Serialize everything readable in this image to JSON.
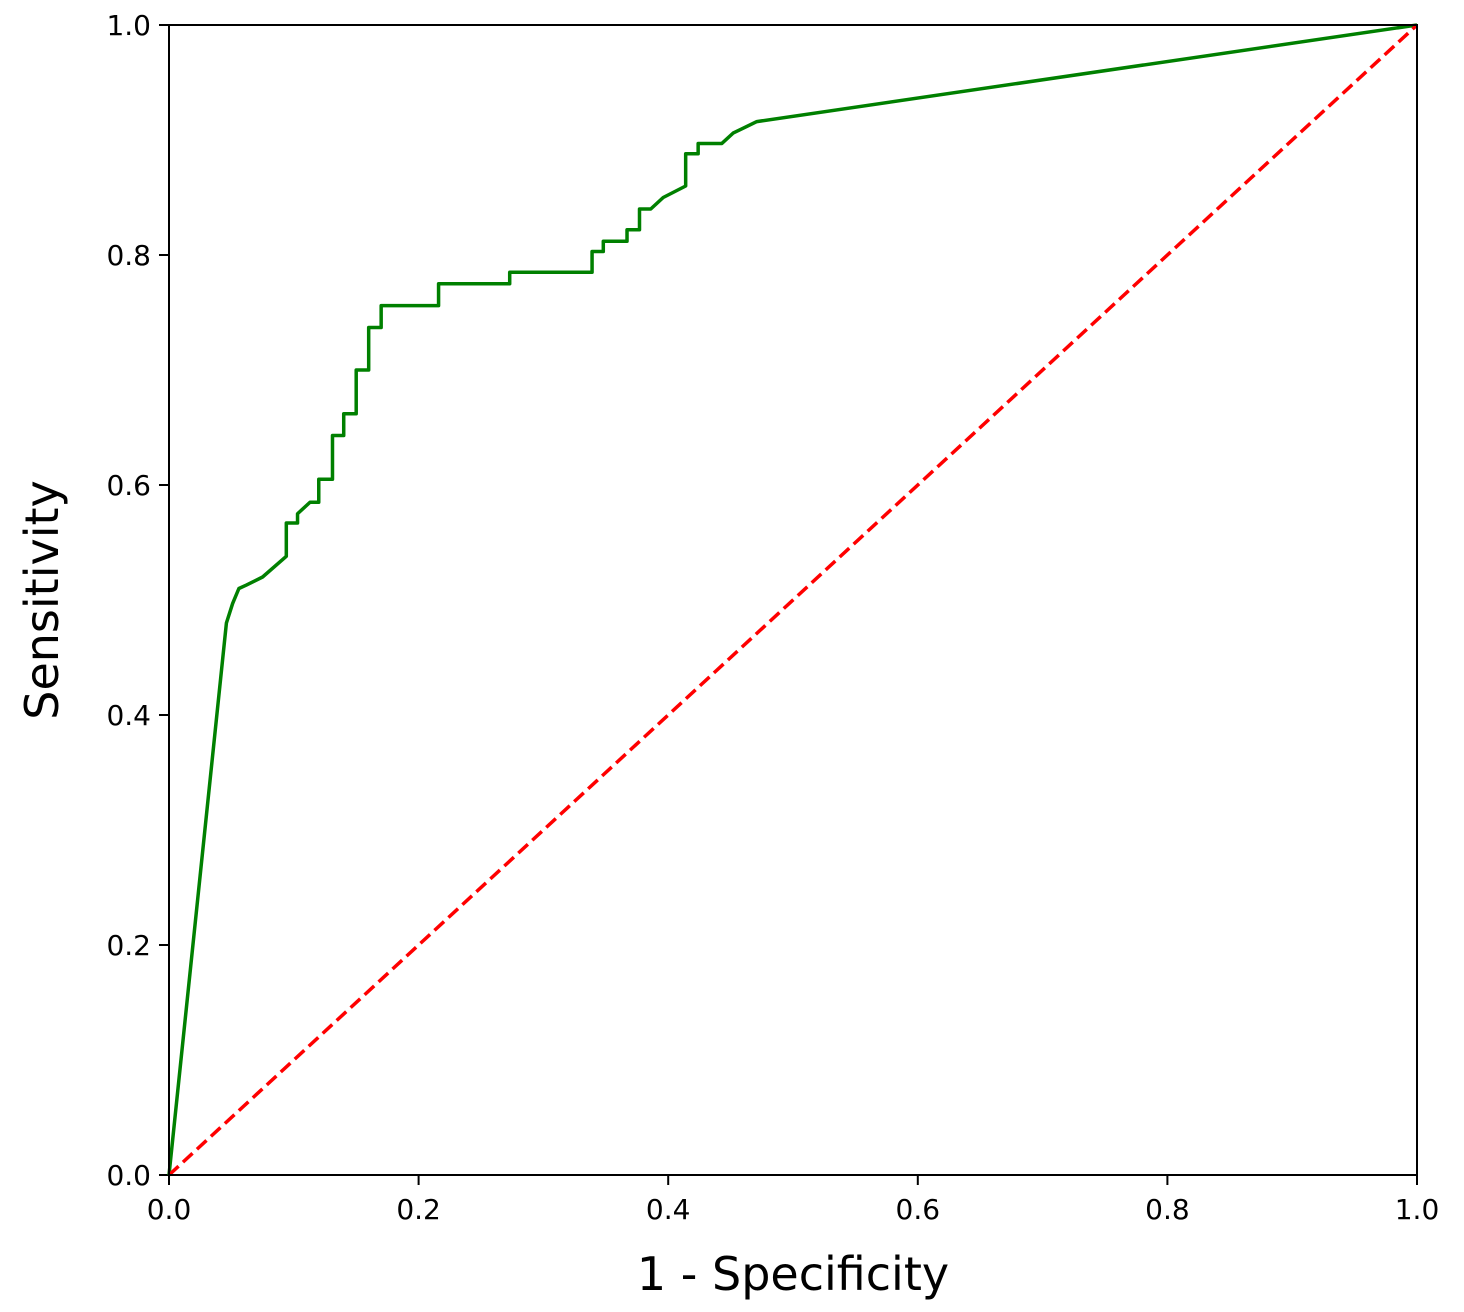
{
  "chart_data": {
    "type": "line",
    "title": "",
    "xlabel": "1 - Specificity",
    "ylabel": "Sensitivity",
    "xlim": [
      0.0,
      1.0
    ],
    "ylim": [
      0.0,
      1.0
    ],
    "grid": false,
    "legend": "none",
    "x_ticks": [
      "0.0",
      "0.2",
      "0.4",
      "0.6",
      "0.8",
      "1.0"
    ],
    "y_ticks": [
      "0.0",
      "0.2",
      "0.4",
      "0.6",
      "0.8",
      "1.0"
    ],
    "series": [
      {
        "color": "#008000",
        "style": "solid",
        "points": [
          [
            0.0,
            0.0
          ],
          [
            0.046,
            0.48
          ],
          [
            0.051,
            0.497
          ],
          [
            0.056,
            0.51
          ],
          [
            0.062,
            0.513
          ],
          [
            0.075,
            0.52
          ],
          [
            0.094,
            0.538
          ],
          [
            0.094,
            0.567
          ],
          [
            0.103,
            0.567
          ],
          [
            0.103,
            0.575
          ],
          [
            0.113,
            0.585
          ],
          [
            0.12,
            0.585
          ],
          [
            0.12,
            0.605
          ],
          [
            0.131,
            0.605
          ],
          [
            0.131,
            0.643
          ],
          [
            0.14,
            0.643
          ],
          [
            0.14,
            0.662
          ],
          [
            0.15,
            0.662
          ],
          [
            0.15,
            0.7
          ],
          [
            0.16,
            0.7
          ],
          [
            0.16,
            0.737
          ],
          [
            0.17,
            0.737
          ],
          [
            0.17,
            0.756
          ],
          [
            0.216,
            0.756
          ],
          [
            0.216,
            0.775
          ],
          [
            0.273,
            0.775
          ],
          [
            0.273,
            0.785
          ],
          [
            0.339,
            0.785
          ],
          [
            0.339,
            0.803
          ],
          [
            0.348,
            0.803
          ],
          [
            0.348,
            0.812
          ],
          [
            0.367,
            0.812
          ],
          [
            0.367,
            0.822
          ],
          [
            0.377,
            0.822
          ],
          [
            0.377,
            0.84
          ],
          [
            0.386,
            0.84
          ],
          [
            0.396,
            0.85
          ],
          [
            0.414,
            0.86
          ],
          [
            0.414,
            0.888
          ],
          [
            0.424,
            0.888
          ],
          [
            0.424,
            0.897
          ],
          [
            0.443,
            0.897
          ],
          [
            0.452,
            0.906
          ],
          [
            0.471,
            0.916
          ],
          [
            1.0,
            1.0
          ]
        ]
      },
      {
        "color": "#ff0000",
        "style": "dashed",
        "points": [
          [
            0.0,
            0.0
          ],
          [
            1.0,
            1.0
          ]
        ]
      }
    ]
  }
}
